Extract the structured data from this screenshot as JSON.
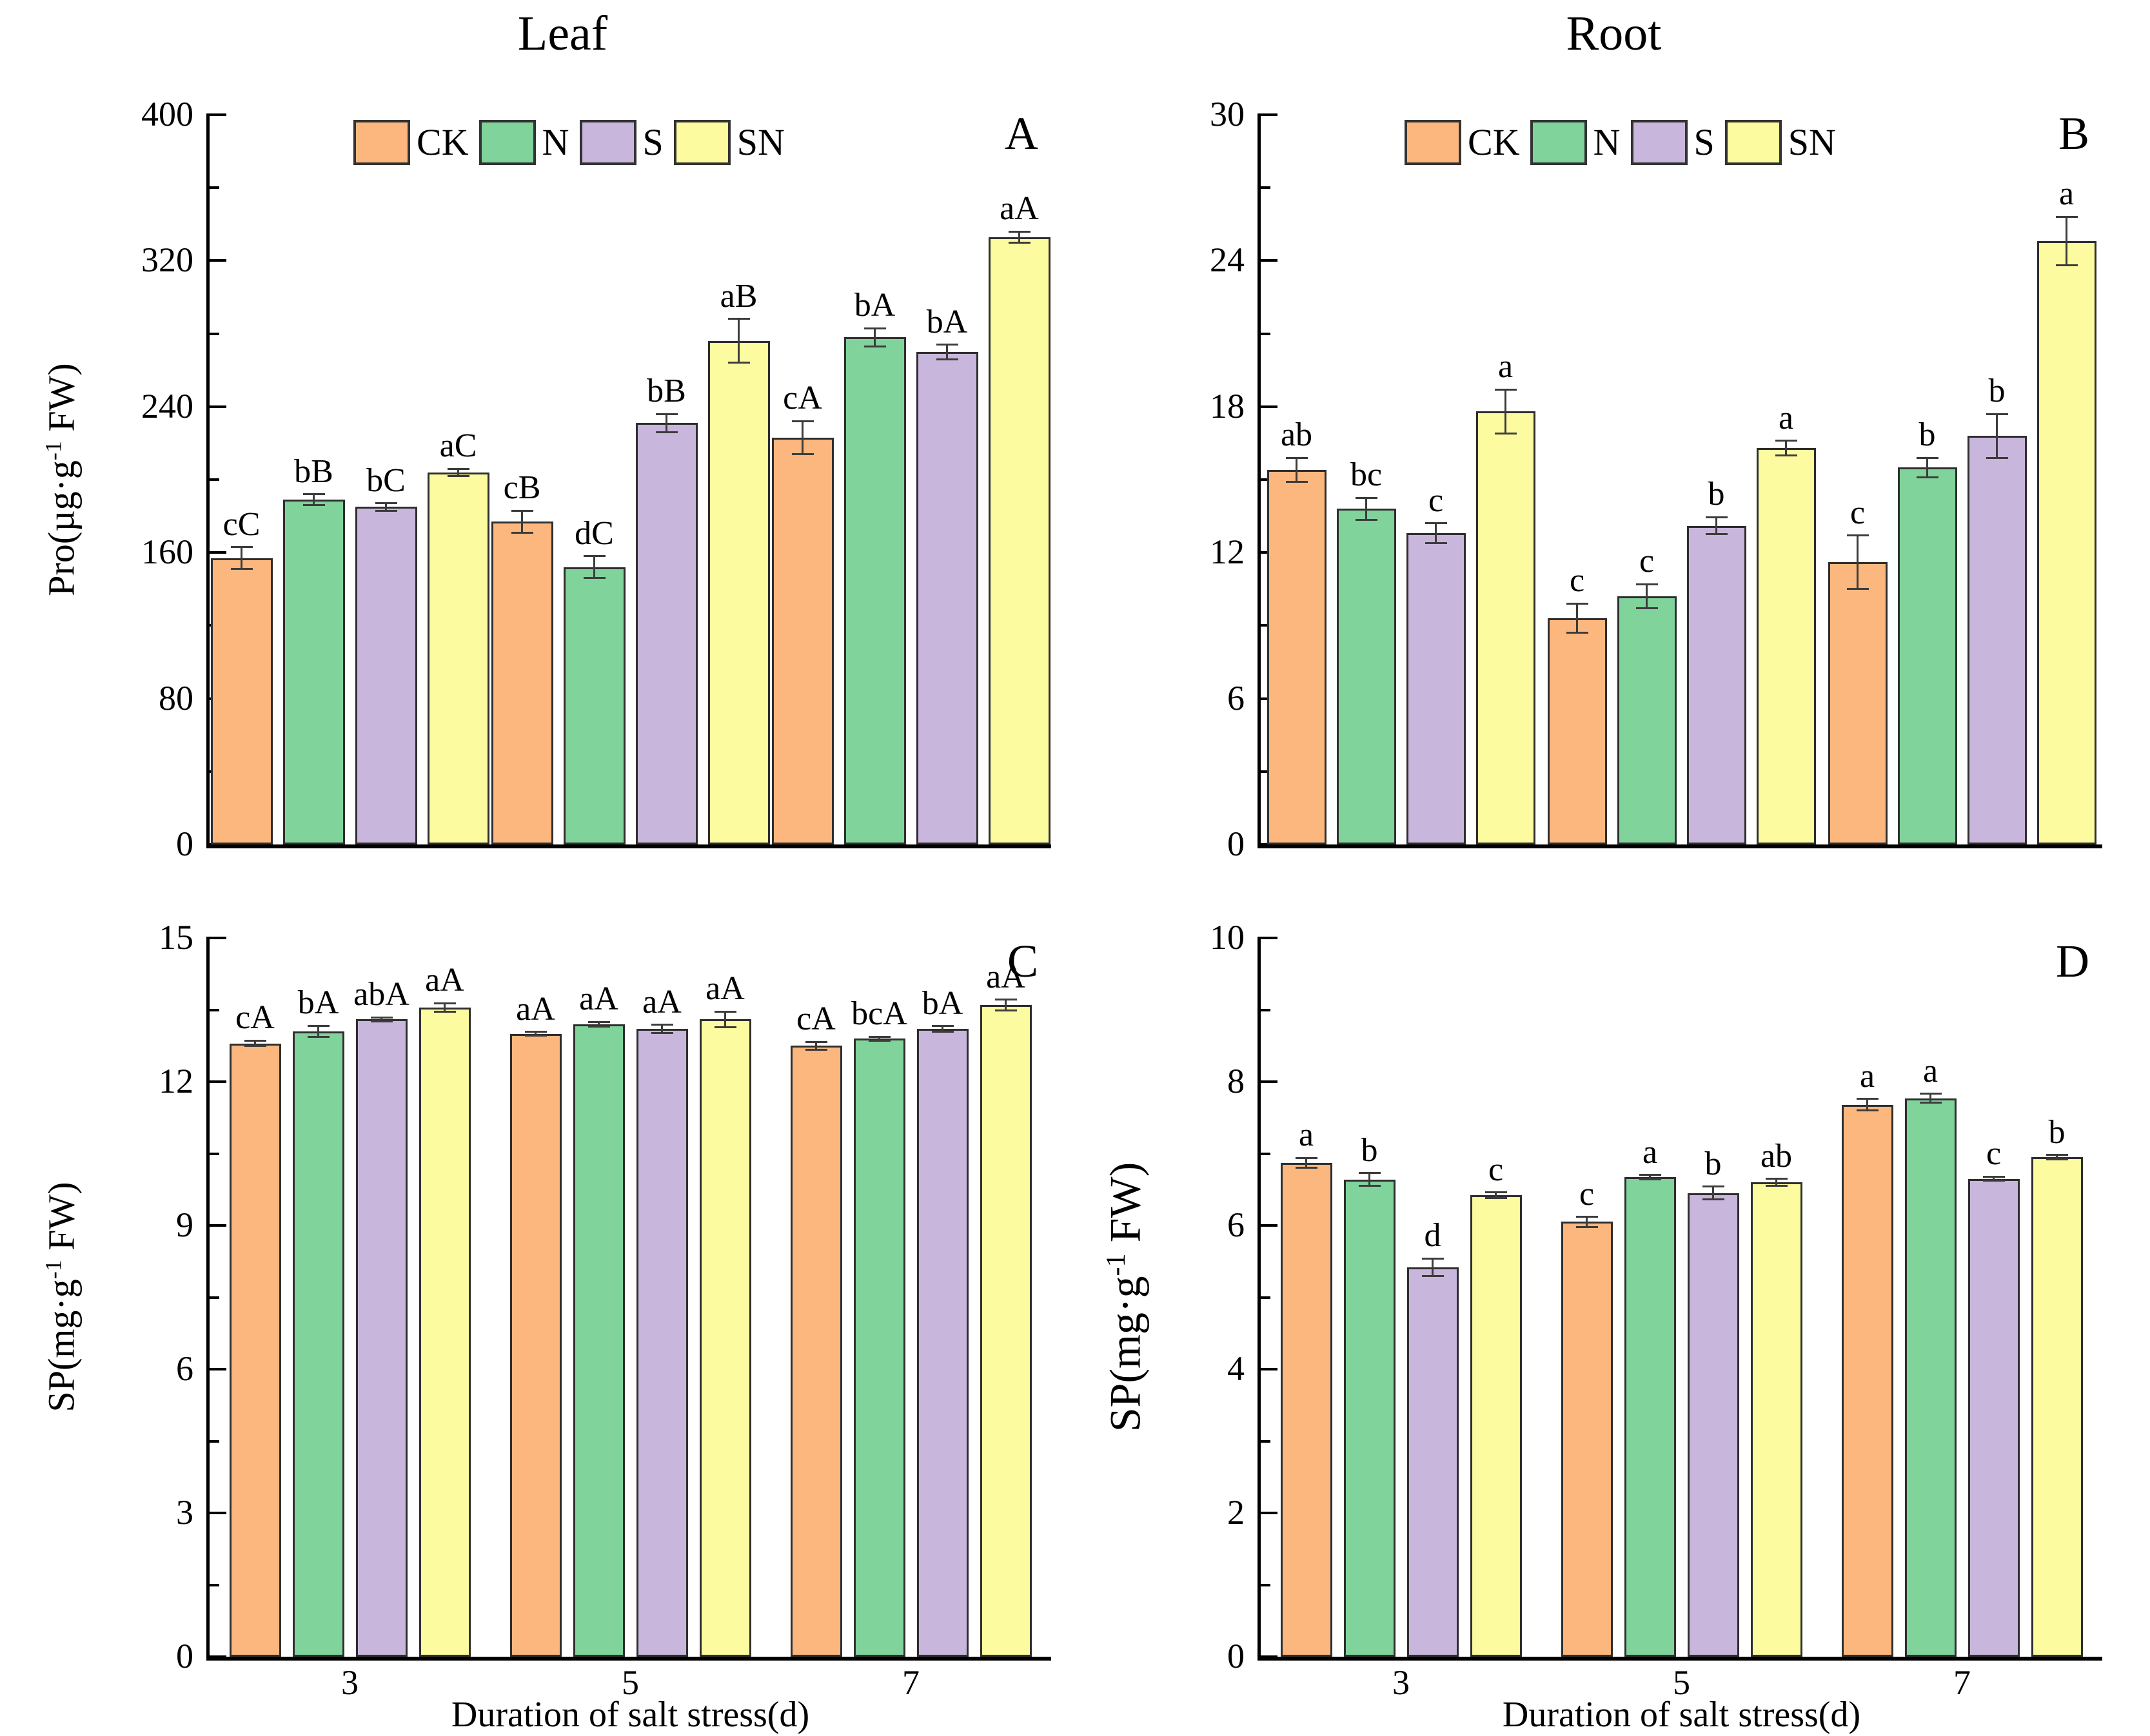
{
  "column_titles": {
    "left": "Leaf",
    "right": "Root"
  },
  "x_axis": {
    "title": "Duration of salt stress(d)",
    "categories": [
      "3",
      "5",
      "7"
    ]
  },
  "legend": {
    "items": [
      {
        "label": "CK",
        "color": "#FBB77E"
      },
      {
        "label": "N",
        "color": "#7FD39B"
      },
      {
        "label": "S",
        "color": "#C9B6DC"
      },
      {
        "label": "SN",
        "color": "#FCFB9F"
      }
    ]
  },
  "style": {
    "bar_border": "#2e2e2e",
    "axis_color": "#000000",
    "error_color": "#3c3c3c"
  },
  "chart_data": [
    {
      "id": "A",
      "type": "bar",
      "panel_letter": "A",
      "title": "Leaf",
      "ylabel": {
        "prefix": "Pro(µg·g",
        "sup": "-1",
        "suffix": " FW)"
      },
      "ylim": [
        0,
        400
      ],
      "yticks": [
        0,
        80,
        160,
        240,
        320,
        400
      ],
      "categories": [
        "3",
        "5",
        "7"
      ],
      "legend_visible": true,
      "x_tick_labels_visible": false,
      "series": [
        {
          "name": "CK",
          "values": [
            157,
            177,
            223
          ],
          "errors": [
            6,
            6,
            9
          ],
          "letters": [
            "cC",
            "cB",
            "cA"
          ]
        },
        {
          "name": "N",
          "values": [
            189,
            152,
            278
          ],
          "errors": [
            3,
            6,
            5
          ],
          "letters": [
            "bB",
            "dC",
            "bA"
          ]
        },
        {
          "name": "S",
          "values": [
            185,
            231,
            270
          ],
          "errors": [
            2,
            5,
            4
          ],
          "letters": [
            "bC",
            "bB",
            "bA"
          ]
        },
        {
          "name": "SN",
          "values": [
            204,
            276,
            333
          ],
          "errors": [
            2,
            12,
            3
          ],
          "letters": [
            "aC",
            "aB",
            "aA"
          ]
        }
      ]
    },
    {
      "id": "B",
      "type": "bar",
      "panel_letter": "B",
      "title": "Root",
      "ylabel": null,
      "ylim": [
        0,
        30
      ],
      "yticks": [
        0,
        6,
        12,
        18,
        24,
        30
      ],
      "categories": [
        "3",
        "5",
        "7"
      ],
      "legend_visible": true,
      "x_tick_labels_visible": false,
      "series": [
        {
          "name": "CK",
          "values": [
            15.4,
            9.3,
            11.6
          ],
          "errors": [
            0.5,
            0.6,
            1.1
          ],
          "letters": [
            "ab",
            "c",
            "c"
          ]
        },
        {
          "name": "N",
          "values": [
            13.8,
            10.2,
            15.5
          ],
          "errors": [
            0.45,
            0.5,
            0.4
          ],
          "letters": [
            "bc",
            "c",
            "b"
          ]
        },
        {
          "name": "S",
          "values": [
            12.8,
            13.1,
            16.8
          ],
          "errors": [
            0.4,
            0.35,
            0.9
          ],
          "letters": [
            "c",
            "b",
            "b"
          ]
        },
        {
          "name": "SN",
          "values": [
            17.8,
            16.3,
            24.8
          ],
          "errors": [
            0.9,
            0.3,
            1.0
          ],
          "letters": [
            "a",
            "a",
            "a"
          ]
        }
      ]
    },
    {
      "id": "C",
      "type": "bar",
      "panel_letter": "C",
      "title": "Leaf",
      "ylabel": {
        "prefix": "SP(mg·g",
        "sup": "-1",
        "suffix": " FW)"
      },
      "ylim": [
        0,
        15
      ],
      "yticks": [
        0,
        3,
        6,
        9,
        12,
        15
      ],
      "categories": [
        "3",
        "5",
        "7"
      ],
      "legend_visible": false,
      "x_tick_labels_visible": true,
      "series": [
        {
          "name": "CK",
          "values": [
            12.8,
            13.0,
            12.75
          ],
          "errors": [
            0.06,
            0.04,
            0.08
          ],
          "letters": [
            "cA",
            "aA",
            "cA"
          ]
        },
        {
          "name": "N",
          "values": [
            13.05,
            13.2,
            12.9
          ],
          "errors": [
            0.12,
            0.05,
            0.04
          ],
          "letters": [
            "bA",
            "aA",
            "bcA"
          ]
        },
        {
          "name": "S",
          "values": [
            13.3,
            13.1,
            13.1
          ],
          "errors": [
            0.04,
            0.09,
            0.06
          ],
          "letters": [
            "abA",
            "aA",
            "bA"
          ]
        },
        {
          "name": "SN",
          "values": [
            13.55,
            13.3,
            13.6
          ],
          "errors": [
            0.09,
            0.16,
            0.11
          ],
          "letters": [
            "aA",
            "aA",
            "aA"
          ]
        }
      ]
    },
    {
      "id": "D",
      "type": "bar",
      "panel_letter": "D",
      "title": "Root",
      "ylabel": {
        "prefix": "SP(mg·g",
        "sup": "-1",
        "suffix": " FW)"
      },
      "ylim": [
        0,
        10
      ],
      "yticks": [
        0,
        2,
        4,
        6,
        8,
        10
      ],
      "categories": [
        "3",
        "5",
        "7"
      ],
      "legend_visible": false,
      "x_tick_labels_visible": true,
      "series": [
        {
          "name": "CK",
          "values": [
            6.87,
            6.05,
            7.68
          ],
          "errors": [
            0.07,
            0.07,
            0.08
          ],
          "letters": [
            "a",
            "c",
            "a"
          ]
        },
        {
          "name": "N",
          "values": [
            6.64,
            6.67,
            7.77
          ],
          "errors": [
            0.09,
            0.03,
            0.06
          ],
          "letters": [
            "b",
            "a",
            "a"
          ]
        },
        {
          "name": "S",
          "values": [
            5.42,
            6.45,
            6.65
          ],
          "errors": [
            0.12,
            0.09,
            0.03
          ],
          "letters": [
            "d",
            "b",
            "c"
          ]
        },
        {
          "name": "SN",
          "values": [
            6.42,
            6.6,
            6.95
          ],
          "errors": [
            0.04,
            0.05,
            0.03
          ],
          "letters": [
            "c",
            "ab",
            "b"
          ]
        }
      ]
    }
  ]
}
